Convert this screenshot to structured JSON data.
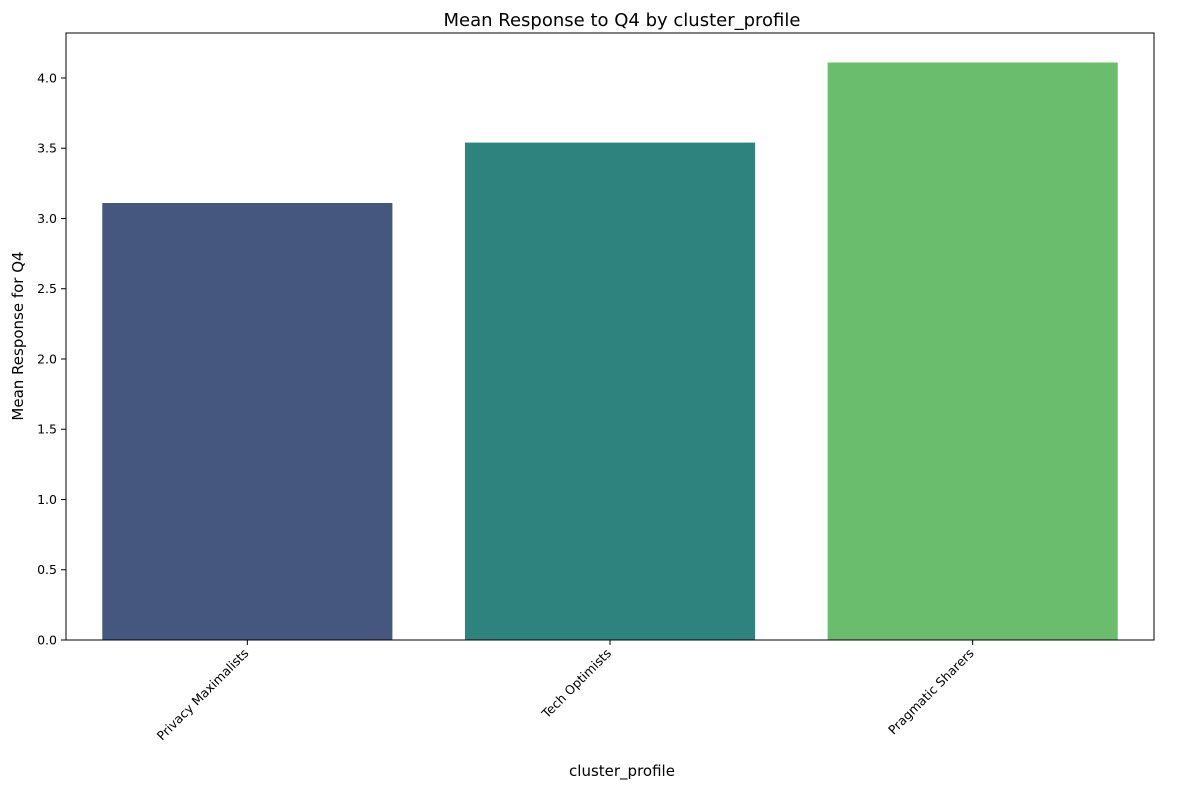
{
  "chart_data": {
    "type": "bar",
    "title": "Mean Response to Q4 by cluster_profile",
    "xlabel": "cluster_profile",
    "ylabel": "Mean Response for Q4",
    "categories": [
      "Privacy Maximalists",
      "Tech Optimists",
      "Pragmatic Sharers"
    ],
    "values": [
      3.11,
      3.54,
      4.11
    ],
    "colors": [
      "#46577f",
      "#2e837e",
      "#6bbd6e"
    ],
    "ylim": [
      0,
      4.32
    ],
    "yticks": [
      "0.0",
      "0.5",
      "1.0",
      "1.5",
      "2.0",
      "2.5",
      "3.0",
      "3.5",
      "4.0"
    ],
    "grid": false,
    "legend": "none"
  }
}
